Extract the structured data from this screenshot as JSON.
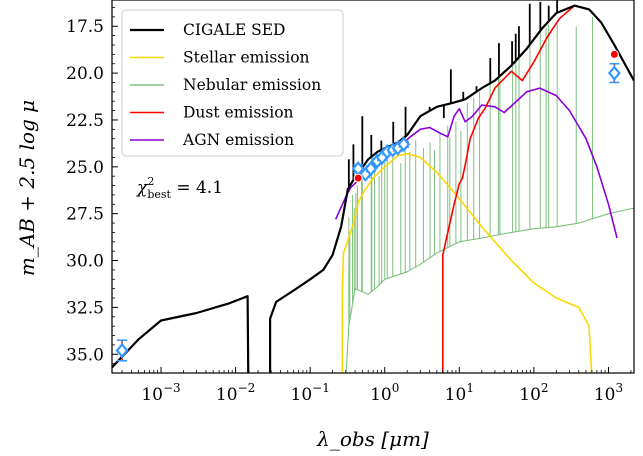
{
  "chart_data": {
    "type": "line",
    "xlabel": "λ_obs [μm]",
    "ylabel": "m_AB + 2.5 log μ",
    "x_scale": "log",
    "xlim": [
      0.00022,
      2200
    ],
    "ylim": [
      36.0,
      16.1
    ],
    "y_inverted": true,
    "x_ticks": [
      {
        "value": 0.001,
        "base": "10",
        "exp": "−3"
      },
      {
        "value": 0.01,
        "base": "10",
        "exp": "−2"
      },
      {
        "value": 0.1,
        "base": "10",
        "exp": "−1"
      },
      {
        "value": 1,
        "base": "10",
        "exp": "0"
      },
      {
        "value": 10,
        "base": "10",
        "exp": "1"
      },
      {
        "value": 100,
        "base": "10",
        "exp": "2"
      },
      {
        "value": 1000,
        "base": "10",
        "exp": "3"
      }
    ],
    "y_ticks": [
      "17.5",
      "20.0",
      "22.5",
      "25.0",
      "27.5",
      "30.0",
      "32.5",
      "35.0"
    ],
    "grid": false,
    "legend_position": "top-left",
    "annotation": {
      "prefix": "χ",
      "sup": "2",
      "sub": "best",
      "suffix": " = 4.1"
    },
    "series": [
      {
        "name": "CIGALE SED",
        "color": "#000000",
        "points": [
          [
            0.00022,
            35.7
          ],
          [
            0.0005,
            34.2
          ],
          [
            0.001,
            33.2
          ],
          [
            0.003,
            32.8
          ],
          [
            0.008,
            32.3
          ],
          [
            0.0145,
            31.9
          ],
          [
            0.0148,
            36.3
          ],
          [
            0.029,
            36.3
          ],
          [
            0.029,
            33.1
          ],
          [
            0.035,
            32.2
          ],
          [
            0.06,
            31.6
          ],
          [
            0.1,
            31.0
          ],
          [
            0.15,
            30.5
          ],
          [
            0.2,
            29.7
          ],
          [
            0.26,
            28.2
          ],
          [
            0.32,
            26.2
          ],
          [
            0.38,
            25.7
          ],
          [
            0.45,
            25.3
          ],
          [
            0.6,
            24.6
          ],
          [
            0.8,
            24.2
          ],
          [
            1.0,
            24.0
          ],
          [
            1.5,
            23.7
          ],
          [
            2.0,
            23.3
          ],
          [
            3.0,
            22.3
          ],
          [
            5.0,
            21.8
          ],
          [
            8.0,
            21.6
          ],
          [
            12.0,
            21.4
          ],
          [
            20.0,
            20.8
          ],
          [
            30.0,
            20.4
          ],
          [
            50.0,
            19.6
          ],
          [
            80.0,
            18.7
          ],
          [
            130.0,
            17.6
          ],
          [
            200.0,
            16.8
          ],
          [
            350.0,
            16.4
          ],
          [
            550.0,
            16.6
          ],
          [
            800.0,
            17.3
          ],
          [
            1200.0,
            18.5
          ],
          [
            2200.0,
            20.4
          ]
        ],
        "spikes": [
          [
            0.33,
            24.6
          ],
          [
            0.38,
            23.8
          ],
          [
            0.5,
            22.3
          ],
          [
            0.66,
            23.3
          ],
          [
            0.9,
            23.6
          ],
          [
            1.3,
            22.6
          ],
          [
            1.9,
            21.8
          ],
          [
            2.5,
            22.8
          ],
          [
            3.3,
            22.2
          ],
          [
            4.0,
            21.8
          ],
          [
            6.2,
            22.4
          ],
          [
            7.7,
            19.8
          ],
          [
            11.3,
            21.0
          ],
          [
            17.0,
            20.7
          ],
          [
            26.0,
            19.2
          ],
          [
            34.0,
            18.4
          ],
          [
            51.0,
            18.3
          ],
          [
            57.0,
            17.9
          ],
          [
            63.0,
            17.5
          ],
          [
            88.0,
            16.3
          ],
          [
            122.0,
            16.2
          ],
          [
            158.0,
            16.4
          ],
          [
            205.0,
            16.1
          ]
        ]
      },
      {
        "name": "Stellar emission",
        "color": "#ffd700",
        "points": [
          [
            0.27,
            36.3
          ],
          [
            0.27,
            31.5
          ],
          [
            0.28,
            29.6
          ],
          [
            0.33,
            28.8
          ],
          [
            0.38,
            28.0
          ],
          [
            0.45,
            26.8
          ],
          [
            0.55,
            26.2
          ],
          [
            0.7,
            25.6
          ],
          [
            1.0,
            25.0
          ],
          [
            1.5,
            24.4
          ],
          [
            2.0,
            24.3
          ],
          [
            3.0,
            24.5
          ],
          [
            5.0,
            25.3
          ],
          [
            10.0,
            26.7
          ],
          [
            20.0,
            28.2
          ],
          [
            50.0,
            30.0
          ],
          [
            100.0,
            31.2
          ],
          [
            200.0,
            32.0
          ],
          [
            400.0,
            32.5
          ],
          [
            550.0,
            33.5
          ],
          [
            600.0,
            36.3
          ]
        ]
      },
      {
        "name": "Nebular emission",
        "color": "#7fbf7f",
        "points": [
          [
            0.27,
            36.3
          ],
          [
            0.3,
            36.3
          ],
          [
            0.33,
            33.5
          ],
          [
            0.4,
            31.5
          ],
          [
            0.6,
            31.8
          ],
          [
            0.8,
            31.4
          ],
          [
            1.0,
            31.0
          ],
          [
            2.0,
            30.6
          ],
          [
            3.0,
            30.2
          ],
          [
            5.0,
            29.6
          ],
          [
            10.0,
            29.0
          ],
          [
            20.0,
            28.8
          ],
          [
            50.0,
            28.5
          ],
          [
            100.0,
            28.3
          ],
          [
            200.0,
            28.2
          ],
          [
            400.0,
            28.0
          ],
          [
            1000.0,
            27.5
          ],
          [
            2200.0,
            27.2
          ]
        ],
        "spikes": [
          [
            0.33,
            27.7
          ],
          [
            0.34,
            28.7
          ],
          [
            0.37,
            26.5
          ],
          [
            0.39,
            27.2
          ],
          [
            0.41,
            26.4
          ],
          [
            0.43,
            26.0
          ],
          [
            0.49,
            25.6
          ],
          [
            0.5,
            25.3
          ],
          [
            0.66,
            24.1
          ],
          [
            0.67,
            25.3
          ],
          [
            0.73,
            25.0
          ],
          [
            0.84,
            25.5
          ],
          [
            0.91,
            24.8
          ],
          [
            1.0,
            24.5
          ],
          [
            1.08,
            24.3
          ],
          [
            1.28,
            23.9
          ],
          [
            1.64,
            24.8
          ],
          [
            1.88,
            23.4
          ],
          [
            2.17,
            24.2
          ],
          [
            2.6,
            23.6
          ],
          [
            3.3,
            24.0
          ],
          [
            4.05,
            23.7
          ],
          [
            4.65,
            24.1
          ],
          [
            5.5,
            23.2
          ],
          [
            6.99,
            22.8
          ],
          [
            7.46,
            23.4
          ],
          [
            8.99,
            22.6
          ],
          [
            10.5,
            23.1
          ],
          [
            12.8,
            21.6
          ],
          [
            15.6,
            21.3
          ],
          [
            18.7,
            21.0
          ],
          [
            25.9,
            20.4
          ],
          [
            33.5,
            19.8
          ],
          [
            35.0,
            20.3
          ],
          [
            51.8,
            19.0
          ],
          [
            57.3,
            18.8
          ],
          [
            63.2,
            18.6
          ],
          [
            88.4,
            17.9
          ],
          [
            121.9,
            17.7
          ],
          [
            145.5,
            17.6
          ],
          [
            157.7,
            17.4
          ],
          [
            205.2,
            17.2
          ],
          [
            370.0,
            17.5
          ],
          [
            610.0,
            17.0
          ]
        ]
      },
      {
        "name": "Dust emission",
        "color": "#ff0000",
        "points": [
          [
            6.0,
            36.3
          ],
          [
            6.0,
            29.7
          ],
          [
            7.0,
            28.5
          ],
          [
            8.5,
            27.0
          ],
          [
            10.0,
            25.9
          ],
          [
            11.0,
            25.6
          ],
          [
            12.0,
            24.9
          ],
          [
            14.0,
            23.5
          ],
          [
            18.0,
            22.4
          ],
          [
            22.0,
            21.9
          ],
          [
            30.0,
            20.8
          ],
          [
            50.0,
            19.9
          ],
          [
            70.0,
            20.4
          ],
          [
            100.0,
            19.4
          ],
          [
            150.0,
            18.1
          ],
          [
            220.0,
            17.1
          ],
          [
            350.0,
            16.4
          ],
          [
            550.0,
            16.6
          ],
          [
            800.0,
            17.3
          ],
          [
            1200.0,
            18.5
          ],
          [
            2200.0,
            20.4
          ]
        ]
      },
      {
        "name": "AGN emission",
        "color": "#8b00d9",
        "points": [
          [
            0.22,
            27.8
          ],
          [
            0.3,
            26.6
          ],
          [
            0.35,
            26.1
          ],
          [
            0.42,
            25.8
          ],
          [
            0.6,
            25.2
          ],
          [
            1.0,
            24.6
          ],
          [
            1.5,
            24.0
          ],
          [
            2.2,
            23.4
          ],
          [
            3.0,
            23.0
          ],
          [
            4.0,
            22.9
          ],
          [
            5.5,
            23.2
          ],
          [
            7.0,
            23.4
          ],
          [
            8.5,
            22.3
          ],
          [
            10.0,
            21.9
          ],
          [
            12.0,
            22.6
          ],
          [
            15.0,
            22.3
          ],
          [
            20.0,
            21.7
          ],
          [
            30.0,
            21.8
          ],
          [
            40.0,
            22.1
          ],
          [
            55.0,
            21.6
          ],
          [
            80.0,
            21.0
          ],
          [
            120.0,
            20.8
          ],
          [
            200.0,
            21.2
          ],
          [
            300.0,
            22.0
          ],
          [
            500.0,
            23.5
          ],
          [
            700.0,
            25.0
          ],
          [
            1000.0,
            27.0
          ],
          [
            1300.0,
            28.8
          ]
        ]
      }
    ],
    "observations": [
      {
        "x": 0.0003,
        "y": 34.8,
        "err": 0.55
      },
      {
        "x": 0.44,
        "y": 25.1,
        "err": 0.2
      },
      {
        "x": 0.55,
        "y": 25.4,
        "err": 0.15
      },
      {
        "x": 0.65,
        "y": 25.1,
        "err": 0.15
      },
      {
        "x": 0.79,
        "y": 24.7,
        "err": 0.15
      },
      {
        "x": 0.92,
        "y": 24.5,
        "err": 0.15
      },
      {
        "x": 1.08,
        "y": 24.2,
        "err": 0.15
      },
      {
        "x": 1.28,
        "y": 24.1,
        "err": 0.15
      },
      {
        "x": 1.5,
        "y": 24.0,
        "err": 0.15
      },
      {
        "x": 1.8,
        "y": 23.8,
        "err": 0.15
      },
      {
        "x": 1200.0,
        "y": 20.0,
        "err": 0.5
      }
    ],
    "model_points": [
      {
        "x": 0.44,
        "y": 25.6
      },
      {
        "x": 1200.0,
        "y": 19.0
      }
    ],
    "observation_color": "#3399ff",
    "model_point_color": "#ff0000"
  }
}
